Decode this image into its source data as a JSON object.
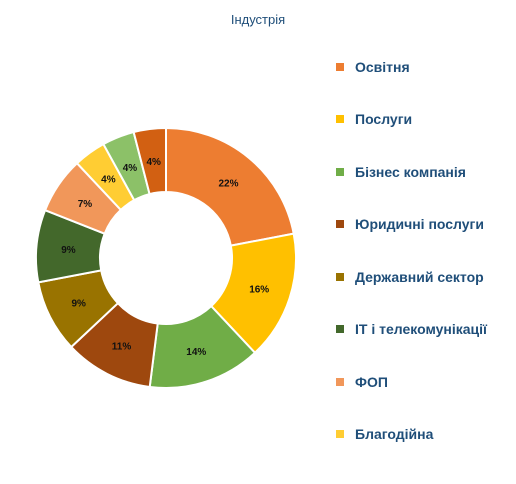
{
  "chart_data": {
    "type": "pie",
    "title": "Індустрія",
    "categories": [
      "Освітня",
      "Послуги",
      "Бізнес компанія",
      "Юридичні послуги",
      "Державний сектор",
      "IT і телекомунікації",
      "ФОП",
      "Благодійна",
      "",
      ""
    ],
    "values": [
      22,
      16,
      14,
      11,
      9,
      9,
      7,
      4,
      4,
      4
    ],
    "labels": [
      "22%",
      "16%",
      "14%",
      "11%",
      "9%",
      "9%",
      "7%",
      "4%",
      "4%",
      "4%"
    ],
    "colors": [
      "#ed7d31",
      "#ffc000",
      "#70ad47",
      "#9e480e",
      "#997300",
      "#43682b",
      "#f1975a",
      "#ffcd33",
      "#8cc168",
      "#d26012"
    ],
    "legend": "right",
    "donut": true
  }
}
